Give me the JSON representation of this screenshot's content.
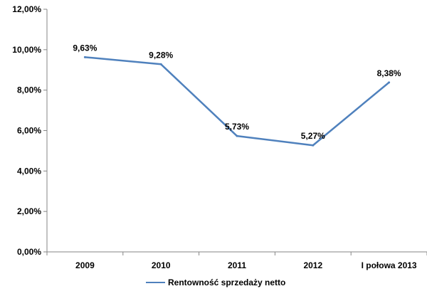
{
  "chart_data": {
    "type": "line",
    "categories": [
      "2009",
      "2010",
      "2011",
      "2012",
      "I połowa 2013"
    ],
    "series": [
      {
        "name": "Rentowność sprzedaży netto",
        "values": [
          9.63,
          9.28,
          5.73,
          5.27,
          8.38
        ],
        "labels": [
          "9,63%",
          "9,28%",
          "5,73%",
          "5,27%",
          "8,38%"
        ],
        "color": "#4F81BD"
      }
    ],
    "y_ticks": [
      "0,00%",
      "2,00%",
      "4,00%",
      "6,00%",
      "8,00%",
      "10,00%",
      "12,00%"
    ],
    "ylim": [
      0,
      12
    ],
    "title": "",
    "xlabel": "",
    "ylabel": "",
    "grid": false,
    "legend_position": "bottom"
  }
}
